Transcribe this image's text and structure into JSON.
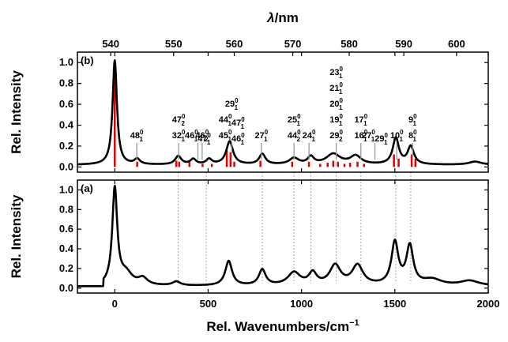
{
  "chart_data": {
    "type": "line",
    "x_axis": {
      "label": "Rel. Wavenumbers/cm",
      "label_superscript": "−1",
      "range": [
        -200,
        2000
      ],
      "ticks": [
        0,
        500,
        1000,
        1500,
        2000
      ],
      "tick_labels": [
        "0",
        "500",
        "1000",
        "1500",
        "2000"
      ]
    },
    "top_axis": {
      "label_symbol": "λ",
      "label_rest": "/nm",
      "ticks": [
        540,
        550,
        560,
        570,
        580,
        590,
        600
      ],
      "tick_labels": [
        "540",
        "550",
        "560",
        "570",
        "580",
        "590",
        "600"
      ]
    },
    "y_axis": {
      "label": "Rel. Intensity",
      "range": [
        -0.05,
        1.1
      ],
      "ticks": [
        0.0,
        0.2,
        0.4,
        0.6,
        0.8,
        1.0
      ],
      "tick_labels": [
        "0.0",
        "0.2",
        "0.4",
        "0.6",
        "0.8",
        "1.0"
      ]
    },
    "panels": [
      {
        "label": "(b)",
        "baseline": 0.02,
        "series": [
          {
            "type": "spectrum",
            "color": "#000000",
            "peaks": [
              [
                0,
                1.0,
                14
              ],
              [
                120,
                0.05,
                18
              ],
              [
                340,
                0.08,
                20
              ],
              [
                420,
                0.05,
                18
              ],
              [
                505,
                0.05,
                18
              ],
              [
                615,
                0.22,
                22
              ],
              [
                790,
                0.1,
                20
              ],
              [
                960,
                0.06,
                30
              ],
              [
                1050,
                0.07,
                20
              ],
              [
                1170,
                0.1,
                45
              ],
              [
                1290,
                0.08,
                35
              ],
              [
                1505,
                0.25,
                20
              ],
              [
                1585,
                0.17,
                20
              ],
              [
                1930,
                0.03,
                40
              ]
            ]
          },
          {
            "type": "sticks",
            "color": "#e00000",
            "sticks": [
              [
                0,
                0.98
              ],
              [
                120,
                0.05
              ],
              [
                330,
                0.06
              ],
              [
                345,
                0.05
              ],
              [
                400,
                0.06
              ],
              [
                470,
                0.03
              ],
              [
                520,
                0.03
              ],
              [
                600,
                0.16
              ],
              [
                620,
                0.14
              ],
              [
                640,
                0.05
              ],
              [
                780,
                0.06
              ],
              [
                950,
                0.05
              ],
              [
                1040,
                0.05
              ],
              [
                1100,
                0.03
              ],
              [
                1140,
                0.04
              ],
              [
                1170,
                0.06
              ],
              [
                1195,
                0.05
              ],
              [
                1230,
                0.03
              ],
              [
                1260,
                0.04
              ],
              [
                1300,
                0.05
              ],
              [
                1335,
                0.03
              ],
              [
                1495,
                0.12
              ],
              [
                1520,
                0.08
              ],
              [
                1590,
                0.12
              ],
              [
                1610,
                0.08
              ]
            ]
          }
        ],
        "annotations": [
          {
            "x": 118,
            "lines": [
              [
                [
                  "48",
                  "0",
                  "1"
                ]
              ]
            ]
          },
          {
            "x": 342,
            "lines": [
              [
                [
                  "47",
                  "0",
                  "2"
                ]
              ],
              [
                [
                  "32",
                  "0",
                  "1"
                ]
              ]
            ]
          },
          {
            "x": 445,
            "lines": [
              [
                [
                  "46",
                  "0",
                  "1"
                ],
                [
                  "47",
                  "0",
                  "1"
                ]
              ]
            ]
          },
          {
            "x": 468,
            "lines": [
              [
                [
                  "46",
                  "0",
                  "2"
                ]
              ]
            ]
          },
          {
            "x": 626,
            "lines": [
              [
                [
                  "29",
                  "0",
                  "1"
                ]
              ],
              [
                [
                  "44",
                  "0",
                  "1"
                ],
                [
                  "47",
                  "0",
                  "1"
                ]
              ],
              [
                [
                  "45",
                  "0",
                  "1"
                ],
                [
                  "46",
                  "0",
                  "1"
                ]
              ]
            ]
          },
          {
            "x": 785,
            "lines": [
              [
                [
                  "27",
                  "0",
                  "1"
                ]
              ]
            ]
          },
          {
            "x": 960,
            "lines": [
              [
                [
                  "25",
                  "0",
                  "1"
                ]
              ],
              [
                [
                  "44",
                  "0",
                  "2"
                ]
              ]
            ]
          },
          {
            "x": 1040,
            "lines": [
              [
                [
                  "24",
                  "0",
                  "1"
                ]
              ]
            ]
          },
          {
            "x": 1186,
            "lines": [
              [
                [
                  "23",
                  "0",
                  "1"
                ]
              ],
              [
                [
                  "21",
                  "0",
                  "1"
                ]
              ],
              [
                [
                  "20",
                  "0",
                  "1"
                ]
              ],
              [
                [
                  "19",
                  "0",
                  "1"
                ]
              ],
              [
                [
                  "29",
                  "0",
                  "2"
                ]
              ]
            ]
          },
          {
            "x": 1318,
            "lines": [
              [
                [
                  "17",
                  "0",
                  "1"
                ]
              ],
              [
                [
                  "16",
                  "0",
                  "1"
                ]
              ]
            ]
          },
          {
            "x": 1393,
            "lines": [
              [
                [
                  "27",
                  "0",
                  "1"
                ],
                [
                  "29",
                  "0",
                  "1"
                ]
              ]
            ]
          },
          {
            "x": 1510,
            "lines": [
              [
                [
                  "10",
                  "0",
                  "1"
                ]
              ]
            ]
          },
          {
            "x": 1595,
            "lines": [
              [
                [
                  "9",
                  "0",
                  "1"
                ]
              ],
              [
                [
                  "8",
                  "0",
                  "1"
                ]
              ]
            ]
          }
        ]
      },
      {
        "label": "(a)",
        "baseline": 0.02,
        "series": [
          {
            "type": "spectrum",
            "color": "#000000",
            "peaks": [
              [
                0,
                0.98,
                16
              ],
              [
                60,
                0.12,
                40
              ],
              [
                150,
                0.07,
                30
              ],
              [
                330,
                0.04,
                25
              ],
              [
                610,
                0.25,
                22
              ],
              [
                790,
                0.16,
                22
              ],
              [
                960,
                0.13,
                40
              ],
              [
                1060,
                0.12,
                25
              ],
              [
                1180,
                0.2,
                35
              ],
              [
                1300,
                0.2,
                35
              ],
              [
                1500,
                0.43,
                22
              ],
              [
                1580,
                0.39,
                22
              ],
              [
                1700,
                0.06,
                60
              ],
              [
                1900,
                0.05,
                60
              ]
            ]
          }
        ]
      }
    ],
    "connectors_x": [
      340,
      490,
      790,
      960,
      1050,
      1186,
      1318,
      1505,
      1585
    ]
  }
}
